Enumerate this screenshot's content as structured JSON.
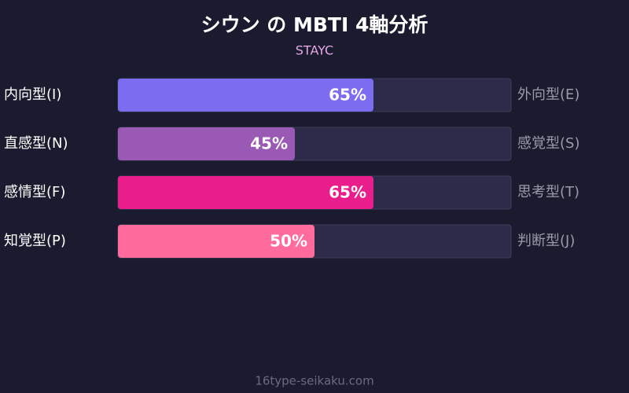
{
  "chart_data": {
    "type": "bar",
    "title": "シウン の MBTI 4軸分析",
    "subtitle": "STAYC",
    "categories": [
      "内向型(I)",
      "直感型(N)",
      "感情型(F)",
      "知覚型(P)"
    ],
    "right_labels": [
      "外向型(E)",
      "感覚型(S)",
      "思考型(T)",
      "判断型(J)"
    ],
    "values": [
      65,
      45,
      65,
      50
    ],
    "value_labels": [
      "65%",
      "45%",
      "65%",
      "50%"
    ],
    "colors": [
      "#7b6cf0",
      "#9b59b6",
      "#e91e8c",
      "#ff6b9d"
    ],
    "xlim": [
      0,
      100
    ]
  },
  "footer": "16type-seikaku.com"
}
